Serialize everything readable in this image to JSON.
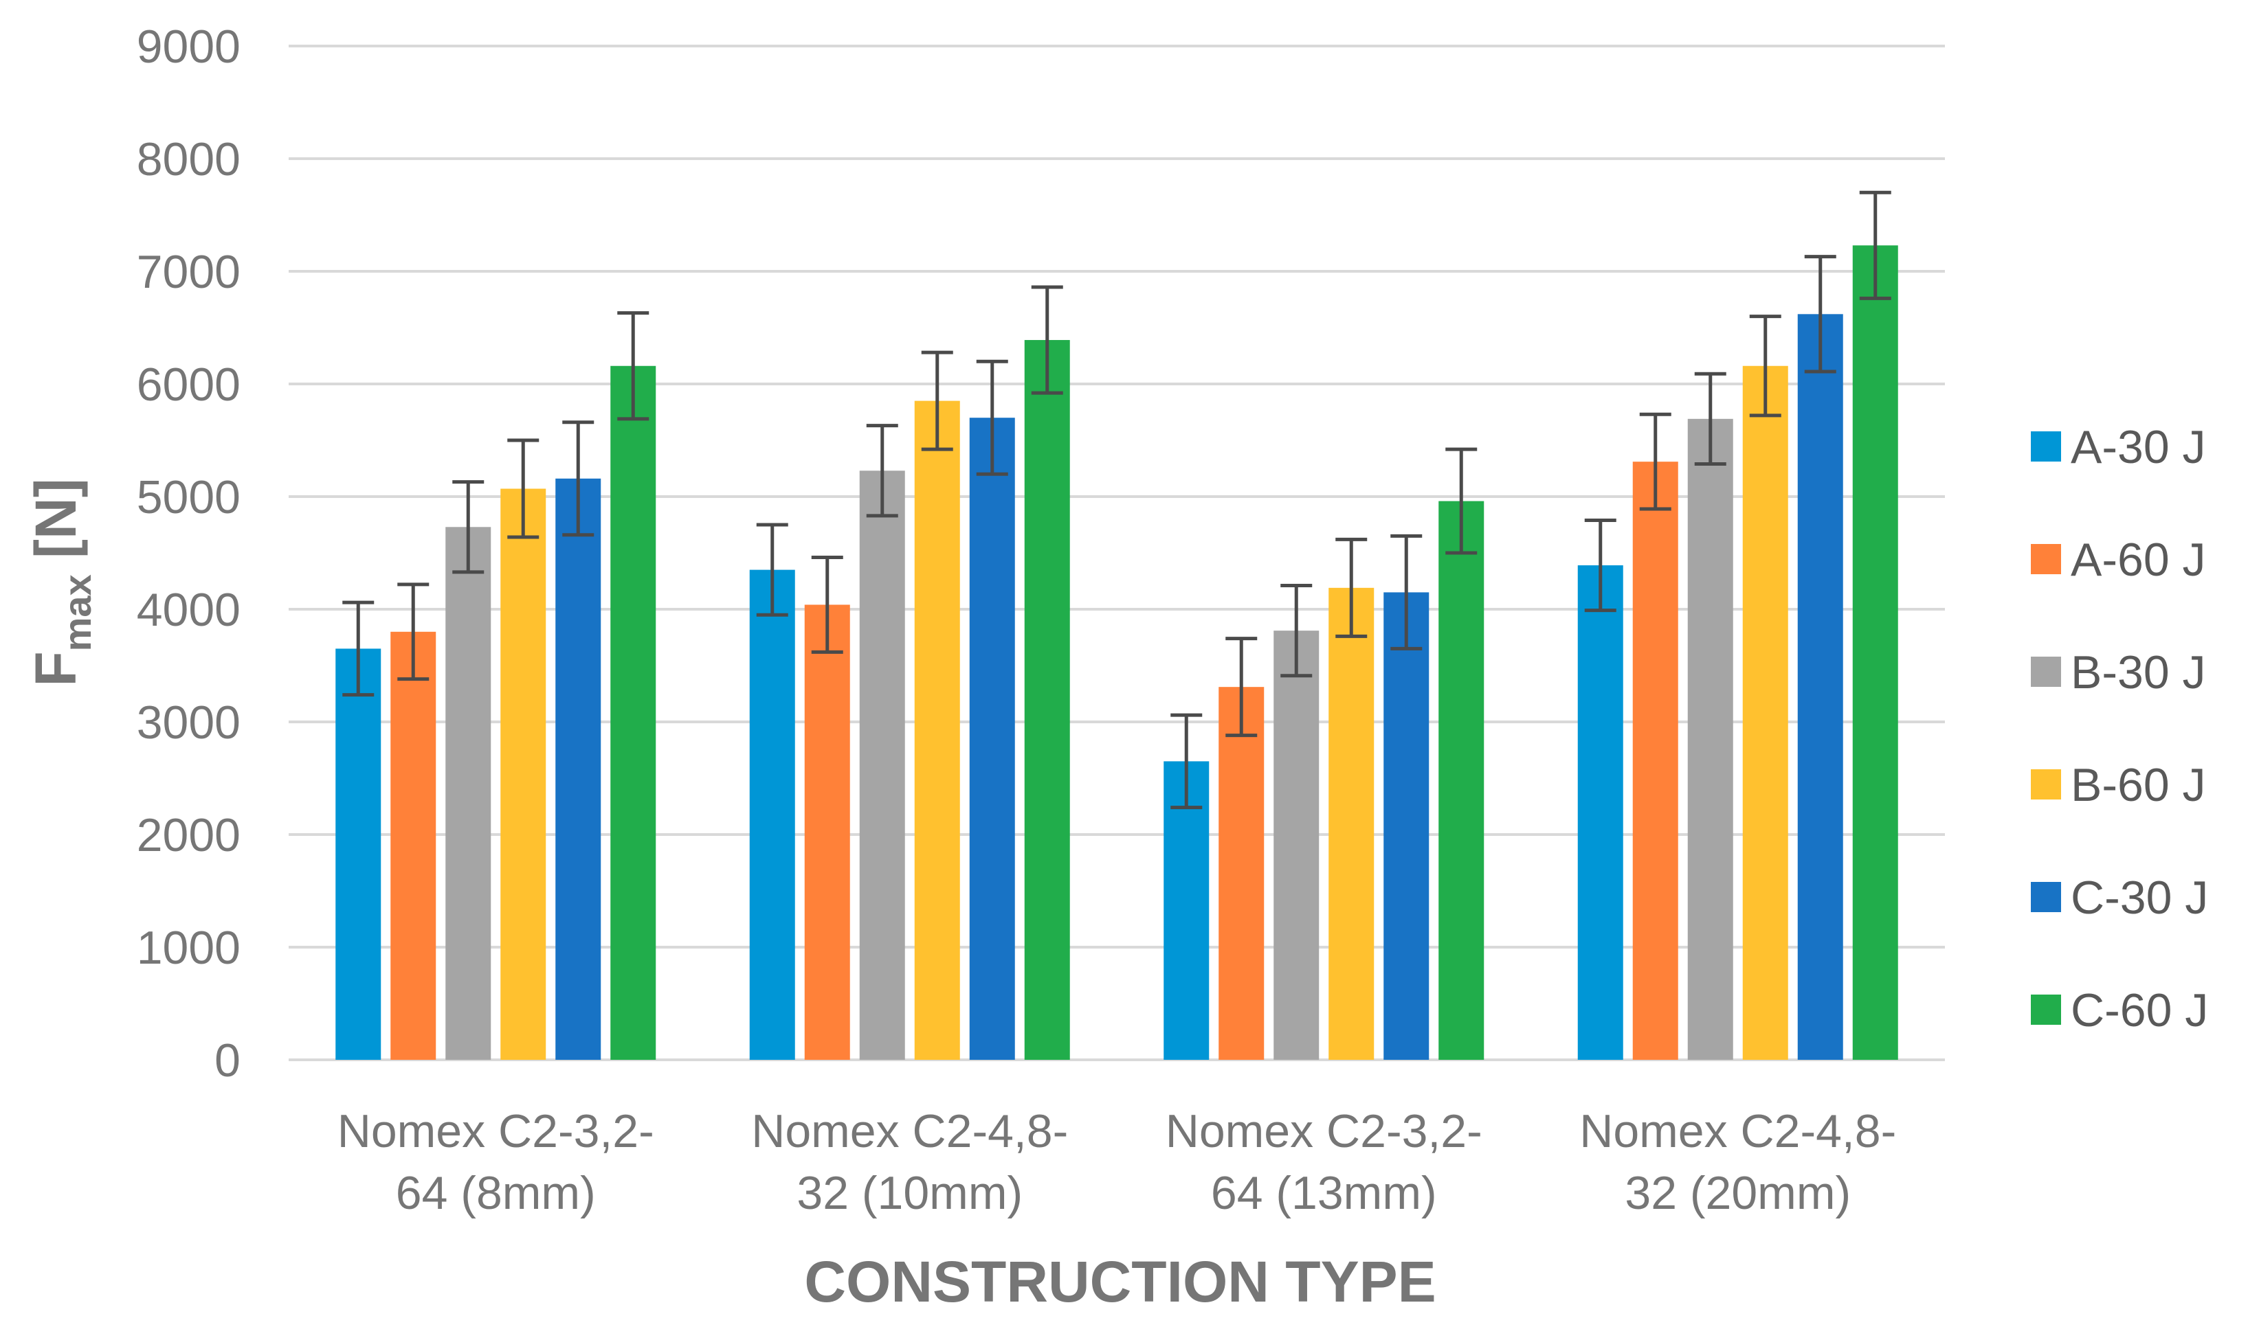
{
  "chart_data": {
    "type": "bar",
    "title": "",
    "xlabel": "CONSTRUCTION TYPE",
    "ylabel_main": "F",
    "ylabel_sub": "max",
    "ylabel_unit": " [N]",
    "ylim": [
      0,
      9000
    ],
    "yticks": [
      0,
      1000,
      2000,
      3000,
      4000,
      5000,
      6000,
      7000,
      8000,
      9000
    ],
    "grid": true,
    "legend_position": "right",
    "categories": [
      [
        "Nomex C2-3,2-",
        "64 (8mm)"
      ],
      [
        "Nomex C2-4,8-",
        "32 (10mm)"
      ],
      [
        "Nomex C2-3,2-",
        "64 (13mm)"
      ],
      [
        "Nomex C2-4,8-",
        "32 (20mm)"
      ]
    ],
    "series": [
      {
        "name": "A-30 J",
        "color": "#0096D6",
        "values": [
          3650,
          4350,
          2650,
          4390
        ],
        "errors": [
          410,
          400,
          410,
          400
        ]
      },
      {
        "name": "A-60 J",
        "color": "#FF8139",
        "values": [
          3800,
          4040,
          3310,
          5310
        ],
        "errors": [
          420,
          420,
          430,
          420
        ]
      },
      {
        "name": "B-30 J",
        "color": "#A5A5A5",
        "values": [
          4730,
          5230,
          3810,
          5690
        ],
        "errors": [
          400,
          400,
          400,
          400
        ]
      },
      {
        "name": "B-60 J",
        "color": "#FFC12F",
        "values": [
          5070,
          5850,
          4190,
          6160
        ],
        "errors": [
          430,
          430,
          430,
          440
        ]
      },
      {
        "name": "C-30 J",
        "color": "#1873C5",
        "values": [
          5160,
          5700,
          4150,
          6620
        ],
        "errors": [
          500,
          500,
          500,
          510
        ]
      },
      {
        "name": "C-60 J",
        "color": "#21AD4B",
        "values": [
          6160,
          6390,
          4960,
          7230
        ],
        "errors": [
          470,
          470,
          460,
          470
        ]
      }
    ]
  }
}
